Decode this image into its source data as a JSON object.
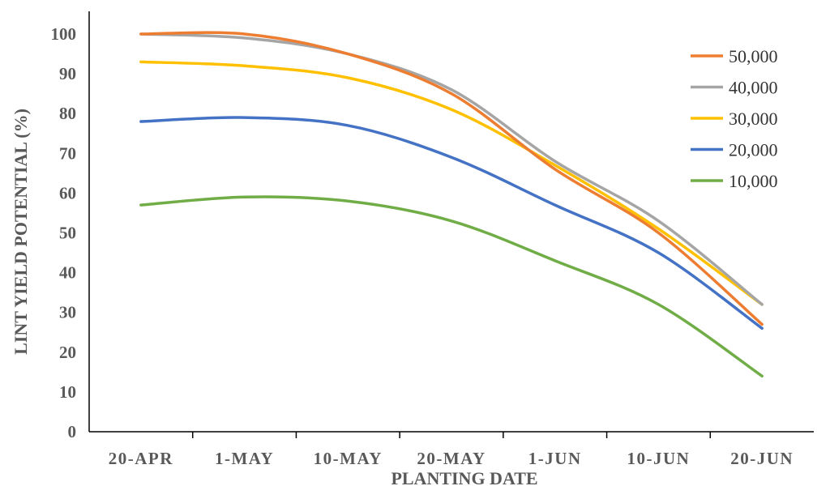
{
  "chart_data": {
    "type": "line",
    "title": "",
    "xlabel": "PLANTING DATE",
    "ylabel": "LINT YIELD POTENTIAL (%)",
    "categories": [
      "20-APR",
      "1-MAY",
      "10-MAY",
      "20-MAY",
      "1-JUN",
      "10-JUN",
      "20-JUN"
    ],
    "ylim": [
      0,
      100
    ],
    "yticks": [
      "0",
      "10",
      "20",
      "30",
      "40",
      "50",
      "60",
      "70",
      "80",
      "90",
      "100"
    ],
    "grid": false,
    "legend_position": "right",
    "smooth": true,
    "series": [
      {
        "name": "50,000",
        "color": "#ED7D31",
        "values": [
          100,
          100,
          95,
          85,
          66,
          50,
          27
        ]
      },
      {
        "name": "40,000",
        "color": "#A5A5A5",
        "values": [
          100,
          99,
          95,
          86,
          68,
          53,
          32
        ]
      },
      {
        "name": "30,000",
        "color": "#FFC000",
        "values": [
          93,
          92,
          89,
          81,
          67,
          51,
          32
        ]
      },
      {
        "name": "20,000",
        "color": "#4472C4",
        "values": [
          78,
          79,
          77,
          69,
          57,
          45,
          26
        ]
      },
      {
        "name": "10,000",
        "color": "#70AD47",
        "values": [
          57,
          59,
          58,
          53,
          43,
          32,
          14
        ]
      }
    ]
  }
}
